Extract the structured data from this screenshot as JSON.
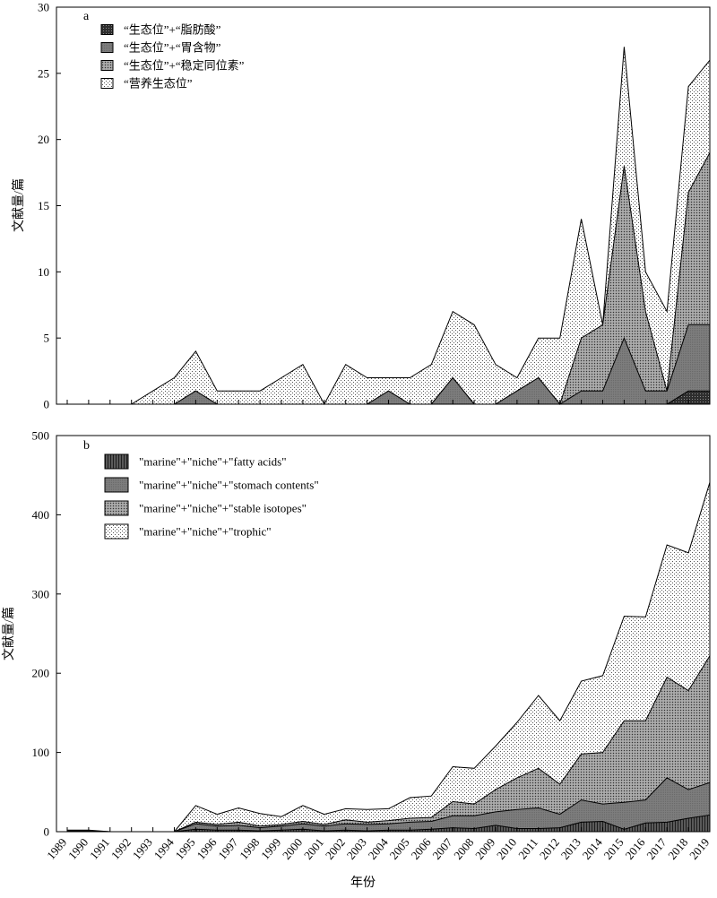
{
  "figure": {
    "xlabel": "年份"
  },
  "colors": {
    "fatty_acids": "#4a4a4a",
    "stomach_contents": "#858585",
    "stable_isotopes": "#b3b3b3",
    "trophic": "#f2f2f2",
    "outline": "#000000"
  },
  "chart_data": [
    {
      "type": "area",
      "panel_letter": "a",
      "ylabel": "文献量/篇",
      "ylim": [
        0,
        30
      ],
      "yticks": [
        0,
        5,
        10,
        15,
        20,
        25,
        30
      ],
      "x": [
        1989,
        1990,
        1991,
        1992,
        1993,
        1994,
        1995,
        1996,
        1997,
        1998,
        1999,
        2000,
        2001,
        2002,
        2003,
        2004,
        2005,
        2006,
        2007,
        2008,
        2009,
        2010,
        2011,
        2012,
        2013,
        2014,
        2015,
        2016,
        2017,
        2018,
        2019
      ],
      "legend_position": "top-left",
      "series": [
        {
          "name": "“生态位”+“脂肪酸”",
          "color_key": "fatty_acids",
          "pattern": "grid",
          "values": [
            0,
            0,
            0,
            0,
            0,
            0,
            0,
            0,
            0,
            0,
            0,
            0,
            0,
            0,
            0,
            0,
            0,
            0,
            0,
            0,
            0,
            0,
            0,
            0,
            0,
            0,
            0,
            0,
            0,
            1,
            1
          ]
        },
        {
          "name": "“生态位”+“胃含物”",
          "color_key": "stomach_contents",
          "pattern": "solid",
          "values": [
            0,
            0,
            0,
            0,
            0,
            0,
            1,
            0,
            0,
            0,
            0,
            0,
            0,
            0,
            0,
            1,
            0,
            0,
            2,
            0,
            0,
            1,
            2,
            0,
            1,
            1,
            5,
            1,
            1,
            6,
            6
          ]
        },
        {
          "name": "“生态位”+“稳定同位素”",
          "color_key": "stable_isotopes",
          "pattern": "dots",
          "values": [
            0,
            0,
            0,
            0,
            0,
            0,
            1,
            0,
            0,
            0,
            0,
            0,
            0,
            0,
            0,
            1,
            0,
            0,
            2,
            0,
            0,
            1,
            2,
            0,
            5,
            6,
            18,
            7,
            1,
            16,
            19
          ]
        },
        {
          "name": "“营养生态位”",
          "color_key": "trophic",
          "pattern": "dots",
          "values": [
            0,
            0,
            0,
            0,
            1,
            2,
            4,
            1,
            1,
            1,
            2,
            3,
            0,
            3,
            2,
            2,
            2,
            3,
            7,
            6,
            3,
            2,
            5,
            5,
            14,
            6,
            27,
            10,
            7,
            24,
            26
          ]
        }
      ]
    },
    {
      "type": "area",
      "panel_letter": "b",
      "ylabel": "文献量/篇",
      "ylim": [
        0,
        500
      ],
      "yticks": [
        0,
        100,
        200,
        300,
        400,
        500
      ],
      "x": [
        1989,
        1990,
        1991,
        1992,
        1993,
        1994,
        1995,
        1996,
        1997,
        1998,
        1999,
        2000,
        2001,
        2002,
        2003,
        2004,
        2005,
        2006,
        2007,
        2008,
        2009,
        2010,
        2011,
        2012,
        2013,
        2014,
        2015,
        2016,
        2017,
        2018,
        2019
      ],
      "legend_position": "top-left",
      "series": [
        {
          "name": "\"marine\"+\"niche\"+\"fatty acids\"",
          "color_key": "fatty_acids",
          "pattern": "vlines",
          "values": [
            0,
            0,
            0,
            0,
            0,
            0,
            3,
            2,
            2,
            1,
            2,
            3,
            1,
            2,
            1,
            2,
            2,
            3,
            5,
            4,
            8,
            4,
            4,
            5,
            12,
            13,
            3,
            11,
            12,
            17,
            21
          ]
        },
        {
          "name": "\"marine\"+\"niche\"+\"stomach contents\"",
          "color_key": "stomach_contents",
          "pattern": "solid",
          "values": [
            1,
            1,
            0,
            0,
            0,
            0,
            10,
            7,
            8,
            5,
            7,
            10,
            7,
            10,
            9,
            10,
            12,
            13,
            20,
            20,
            25,
            28,
            30,
            22,
            40,
            35,
            37,
            40,
            68,
            53,
            62
          ]
        },
        {
          "name": "\"marine\"+\"niche\"+\"stable isotopes\"",
          "color_key": "stable_isotopes",
          "pattern": "dots",
          "values": [
            1,
            1,
            0,
            0,
            0,
            0,
            12,
            9,
            12,
            7,
            9,
            13,
            9,
            15,
            12,
            14,
            17,
            18,
            38,
            35,
            53,
            68,
            80,
            60,
            98,
            100,
            140,
            140,
            195,
            178,
            222
          ]
        },
        {
          "name": "\"marine\"+\"niche\"+\"trophic\"",
          "color_key": "trophic",
          "pattern": "dots",
          "values": [
            2,
            2,
            0,
            0,
            0,
            0,
            33,
            22,
            30,
            23,
            19,
            33,
            22,
            29,
            28,
            29,
            43,
            45,
            82,
            80,
            108,
            138,
            172,
            140,
            190,
            197,
            272,
            271,
            362,
            352,
            441
          ]
        }
      ]
    }
  ]
}
